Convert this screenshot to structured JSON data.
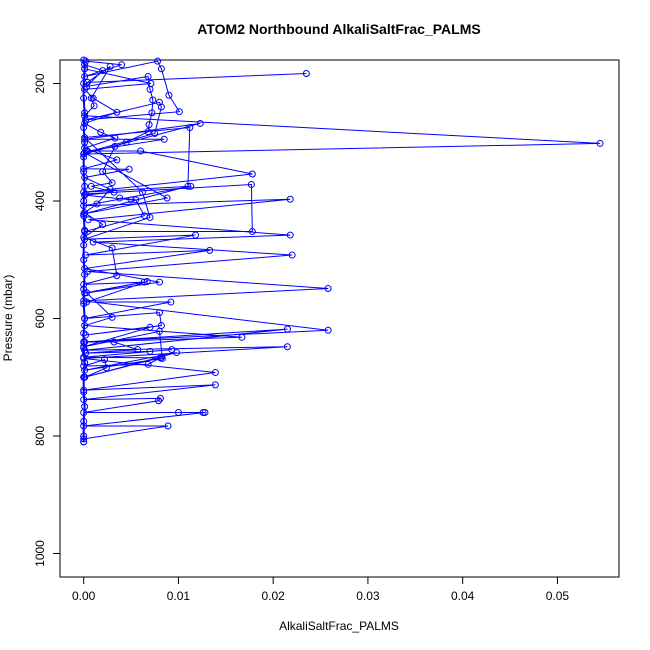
{
  "chart_data": {
    "type": "line",
    "title": "ATOM2 Northbound AlkaliSaltFrac_PALMS",
    "xlabel": "AlkaliSaltFrac_PALMS",
    "ylabel": "Pressure (mbar)",
    "xlim": [
      -0.0025,
      0.0565
    ],
    "ylim": [
      1040,
      160
    ],
    "y_inverted": true,
    "x_ticks": [
      0.0,
      0.01,
      0.02,
      0.03,
      0.04,
      0.05
    ],
    "x_tick_labels": [
      "0.00",
      "0.01",
      "0.02",
      "0.03",
      "0.04",
      "0.05"
    ],
    "y_ticks": [
      200,
      400,
      600,
      800,
      1000
    ],
    "y_tick_labels": [
      "200",
      "400",
      "600",
      "800",
      "1000"
    ],
    "grid": false,
    "legend": "none",
    "marker": "open-circle",
    "color": "#0000ff",
    "series": [
      {
        "values": [
          [
            0.0235,
            183
          ],
          [
            0.0004,
            198
          ],
          [
            0.0028,
            171
          ],
          [
            0.0008,
            225
          ],
          [
            0.0011,
            238
          ],
          [
            0.0001,
            255
          ],
          [
            0.0545,
            302
          ],
          [
            0.0,
            320
          ],
          [
            0.0123,
            268
          ],
          [
            0.0001,
            295
          ],
          [
            0.0085,
            295
          ],
          [
            0.0004,
            315
          ],
          [
            0.006,
            315
          ],
          [
            0.0178,
            354
          ],
          [
            0.0,
            385
          ],
          [
            0.0113,
            375
          ],
          [
            0.0,
            408
          ],
          [
            0.0218,
            397
          ],
          [
            0.0005,
            432
          ],
          [
            0.0218,
            458
          ],
          [
            0.001,
            470
          ],
          [
            0.022,
            492
          ],
          [
            0.0004,
            520
          ],
          [
            0.0258,
            549
          ],
          [
            0.0,
            570
          ],
          [
            0.0258,
            620
          ],
          [
            0.0,
            640
          ],
          [
            0.0215,
            618
          ],
          [
            0.0001,
            654
          ],
          [
            0.0215,
            648
          ],
          [
            0.0,
            668
          ],
          [
            0.0139,
            692
          ],
          [
            0.0,
            722
          ],
          [
            0.0139,
            713
          ],
          [
            0.0,
            738
          ],
          [
            0.0081,
            736
          ],
          [
            0.0079,
            740
          ],
          [
            0.0,
            760
          ],
          [
            0.01,
            760
          ],
          [
            0.0126,
            760
          ],
          [
            0.0128,
            760
          ],
          [
            0.0,
            783
          ],
          [
            0.0089,
            783
          ],
          [
            0.0,
            805
          ],
          [
            0.0,
            810
          ]
        ]
      },
      {
        "values": [
          [
            0.0001,
            168
          ],
          [
            0.002,
            178
          ],
          [
            0.0003,
            205
          ],
          [
            0.0068,
            188
          ],
          [
            0.007,
            210
          ],
          [
            0.0073,
            228
          ],
          [
            0.0072,
            250
          ],
          [
            0.0069,
            270
          ],
          [
            0.0068,
            282
          ],
          [
            0.0045,
            300
          ],
          [
            0.0033,
            307
          ],
          [
            0.002,
            350
          ],
          [
            0.003,
            369
          ],
          [
            0.0008,
            375
          ],
          [
            0.0032,
            385
          ],
          [
            0.0001,
            390
          ],
          [
            0.005,
            398
          ],
          [
            0.0038,
            395
          ],
          [
            0.0055,
            398
          ],
          [
            0.0064,
            425
          ],
          [
            0.0001,
            452
          ],
          [
            0.0178,
            452
          ],
          [
            0.0177,
            372
          ],
          [
            0.0002,
            388
          ]
        ]
      },
      {
        "values": [
          [
            0.0002,
            162
          ],
          [
            0.004,
            168
          ],
          [
            0.0001,
            188
          ],
          [
            0.0078,
            162
          ],
          [
            0.0082,
            175
          ],
          [
            0.009,
            220
          ],
          [
            0.0101,
            248
          ],
          [
            0.0002,
            262
          ],
          [
            0.008,
            232
          ],
          [
            0.0082,
            240
          ],
          [
            0.0075,
            285
          ],
          [
            0.0001,
            318
          ],
          [
            0.0088,
            395
          ],
          [
            0.0,
            422
          ],
          [
            0.011,
            375
          ],
          [
            0.0112,
            275
          ],
          [
            0.0001,
            292
          ],
          [
            0.0062,
            385
          ],
          [
            0.007,
            428
          ],
          [
            0.0001,
            465
          ],
          [
            0.0118,
            458
          ],
          [
            0.0002,
            492
          ],
          [
            0.0133,
            484
          ],
          [
            0.0001,
            515
          ],
          [
            0.008,
            538
          ],
          [
            0.0001,
            557
          ],
          [
            0.0067,
            537
          ],
          [
            0.0003,
            572
          ],
          [
            0.0092,
            572
          ],
          [
            0.0001,
            600
          ],
          [
            0.008,
            590
          ],
          [
            0.0082,
            612
          ],
          [
            0.0002,
            628
          ],
          [
            0.007,
            615
          ],
          [
            0.0,
            648
          ],
          [
            0.008,
            622
          ],
          [
            0.0083,
            668
          ],
          [
            0.0001,
            688
          ],
          [
            0.0098,
            658
          ],
          [
            0.0001,
            700
          ],
          [
            0.0082,
            666
          ]
        ]
      },
      {
        "values": [
          [
            0.0001,
            175
          ],
          [
            0.0071,
            200
          ],
          [
            0.0001,
            210
          ],
          [
            0.001,
            225
          ],
          [
            0.0035,
            249
          ],
          [
            0.0001,
            268
          ],
          [
            0.0018,
            283
          ],
          [
            0.0033,
            293
          ],
          [
            0.0001,
            310
          ],
          [
            0.0035,
            330
          ],
          [
            0.0,
            345
          ],
          [
            0.0048,
            346
          ],
          [
            0.0001,
            360
          ],
          [
            0.0028,
            380
          ],
          [
            0.0014,
            405
          ],
          [
            0.0001,
            420
          ],
          [
            0.002,
            440
          ],
          [
            0.0,
            462
          ],
          [
            0.003,
            480
          ],
          [
            0.0035,
            527
          ],
          [
            0.0,
            542
          ],
          [
            0.0064,
            538
          ],
          [
            0.0003,
            556
          ],
          [
            0.003,
            598
          ],
          [
            0.0001,
            612
          ],
          [
            0.0167,
            632
          ],
          [
            0.0001,
            640
          ],
          [
            0.0032,
            640
          ],
          [
            0.0057,
            653
          ],
          [
            0.0002,
            659
          ],
          [
            0.007,
            656
          ],
          [
            0.0093,
            653
          ],
          [
            0.0,
            666
          ],
          [
            0.0081,
            667
          ],
          [
            0.0068,
            678
          ],
          [
            0.0,
            681
          ],
          [
            0.0022,
            670
          ],
          [
            0.0024,
            684
          ],
          [
            0.0001,
            700
          ]
        ]
      }
    ],
    "axis_line_points": [
      [
        0.0,
        160
      ],
      [
        0.0001,
        175
      ],
      [
        0.0,
        200
      ],
      [
        0.0,
        225
      ],
      [
        0.0001,
        250
      ],
      [
        0.0,
        275
      ],
      [
        0.0001,
        300
      ],
      [
        0.0,
        325
      ],
      [
        0.0,
        350
      ],
      [
        0.0001,
        375
      ],
      [
        0.0,
        400
      ],
      [
        0.0,
        425
      ],
      [
        0.0001,
        450
      ],
      [
        0.0,
        475
      ],
      [
        0.0,
        500
      ],
      [
        0.0001,
        525
      ],
      [
        0.0,
        550
      ],
      [
        0.0,
        575
      ],
      [
        0.0001,
        600
      ],
      [
        0.0,
        625
      ],
      [
        0.0,
        650
      ],
      [
        0.0001,
        675
      ],
      [
        0.0,
        700
      ],
      [
        0.0,
        725
      ],
      [
        0.0001,
        750
      ],
      [
        0.0,
        775
      ],
      [
        0.0,
        800
      ],
      [
        0.0,
        810
      ]
    ]
  }
}
